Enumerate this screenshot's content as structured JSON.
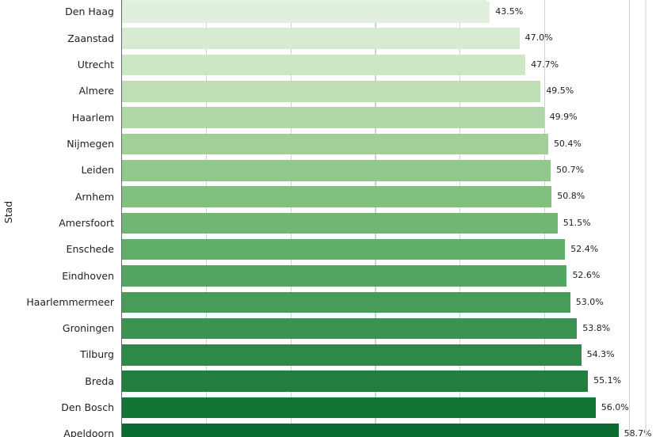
{
  "chart_data": {
    "type": "bar",
    "orientation": "horizontal",
    "title": "",
    "xlabel": "",
    "ylabel": "Stad",
    "categories": [
      "Den Haag",
      "Zaanstad",
      "Utrecht",
      "Almere",
      "Haarlem",
      "Nijmegen",
      "Leiden",
      "Arnhem",
      "Amersfoort",
      "Enschede",
      "Eindhoven",
      "Haarlemmermeer",
      "Groningen",
      "Tilburg",
      "Breda",
      "Den Bosch",
      "Apeldoorn"
    ],
    "values": [
      43.5,
      47.0,
      47.7,
      49.5,
      49.9,
      50.4,
      50.7,
      50.8,
      51.5,
      52.4,
      52.6,
      53.0,
      53.8,
      54.3,
      55.1,
      56.0,
      58.7
    ],
    "value_labels": [
      "43.5%",
      "47.0%",
      "47.7%",
      "49.5%",
      "49.9%",
      "50.4%",
      "50.7%",
      "50.8%",
      "51.5%",
      "52.4%",
      "52.6%",
      "53.0%",
      "53.8%",
      "54.3%",
      "55.1%",
      "56.0%",
      "58.7%"
    ],
    "bar_colors": [
      "#e1efde",
      "#d6ebcf",
      "#cce7c4",
      "#bedfb5",
      "#afd7a7",
      "#a1cf97",
      "#91c88b",
      "#82c07e",
      "#71b772",
      "#61ae69",
      "#53a661",
      "#479c58",
      "#3a9350",
      "#2d8947",
      "#207f3f",
      "#127536",
      "#096b2f"
    ],
    "xlim": [
      0,
      60
    ],
    "gridline_step_pct": 10,
    "grid": "vertical-light-gray",
    "gridline_color": "#ccd1d5",
    "axis_spine_color": "#64696e",
    "cropped_top_bar": {
      "width_pct": 43.1,
      "color": "#e5f2e1"
    },
    "notes": "chart cropped: no title or x-axis visible; last row (Apeldoorn) partially cut at bottom"
  }
}
